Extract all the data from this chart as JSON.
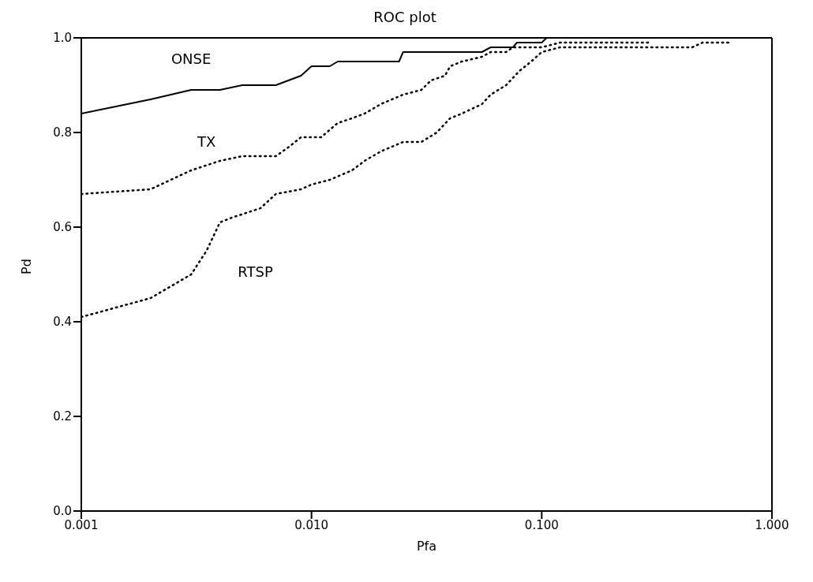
{
  "chart_data": {
    "type": "line",
    "title": "ROC plot",
    "xlabel": "Pfa",
    "ylabel": "Pd",
    "log": "x",
    "xlim": [
      0.001,
      1
    ],
    "xticks": [
      {
        "value": 0.001,
        "label": "0.001"
      },
      {
        "value": 0.01,
        "label": "0.010"
      },
      {
        "value": 0.1,
        "label": "0.100"
      },
      {
        "value": 1,
        "label": "1.000"
      }
    ],
    "ylim": [
      0,
      1
    ],
    "yticks": [
      {
        "value": 0,
        "label": "0.0"
      },
      {
        "value": 0.2,
        "label": "0.2"
      },
      {
        "value": 0.4,
        "label": "0.4"
      },
      {
        "value": 0.6,
        "label": "0.6"
      },
      {
        "value": 0.8,
        "label": "0.8"
      },
      {
        "value": 1,
        "label": "1.0"
      }
    ],
    "grid": false,
    "legend": false,
    "marker": "none",
    "series": [
      {
        "name": "ONSE",
        "color": "#000000",
        "line_style": "solid",
        "x": [
          0.001,
          0.002,
          0.003,
          0.004,
          0.005,
          0.007,
          0.009,
          0.01,
          0.012,
          0.013,
          0.024,
          0.025,
          0.055,
          0.06,
          0.075,
          0.078,
          0.1,
          0.105
        ],
        "values": [
          0.84,
          0.87,
          0.89,
          0.89,
          0.9,
          0.9,
          0.92,
          0.94,
          0.94,
          0.95,
          0.95,
          0.97,
          0.97,
          0.98,
          0.98,
          0.99,
          0.99,
          1.0
        ]
      },
      {
        "name": "TX",
        "color": "#000000",
        "line_style": "dotted",
        "x": [
          0.001,
          0.002,
          0.003,
          0.004,
          0.005,
          0.007,
          0.008,
          0.009,
          0.011,
          0.013,
          0.015,
          0.017,
          0.02,
          0.025,
          0.03,
          0.033,
          0.038,
          0.04,
          0.045,
          0.055,
          0.06,
          0.07,
          0.075,
          0.1,
          0.12,
          0.3
        ],
        "values": [
          0.67,
          0.68,
          0.72,
          0.74,
          0.75,
          0.75,
          0.77,
          0.79,
          0.79,
          0.82,
          0.83,
          0.84,
          0.86,
          0.88,
          0.89,
          0.91,
          0.92,
          0.94,
          0.95,
          0.96,
          0.97,
          0.97,
          0.98,
          0.98,
          0.99,
          0.99
        ]
      },
      {
        "name": "RTSP",
        "color": "#000000",
        "line_style": "dotted",
        "x": [
          0.001,
          0.002,
          0.003,
          0.0035,
          0.004,
          0.0045,
          0.006,
          0.007,
          0.009,
          0.01,
          0.012,
          0.015,
          0.017,
          0.02,
          0.025,
          0.03,
          0.035,
          0.04,
          0.045,
          0.055,
          0.06,
          0.07,
          0.08,
          0.09,
          0.1,
          0.12,
          0.45,
          0.5,
          0.65
        ],
        "values": [
          0.41,
          0.45,
          0.5,
          0.55,
          0.61,
          0.62,
          0.64,
          0.67,
          0.68,
          0.69,
          0.7,
          0.72,
          0.74,
          0.76,
          0.78,
          0.78,
          0.8,
          0.83,
          0.84,
          0.86,
          0.88,
          0.9,
          0.93,
          0.95,
          0.97,
          0.98,
          0.98,
          0.99,
          0.99
        ]
      }
    ]
  }
}
